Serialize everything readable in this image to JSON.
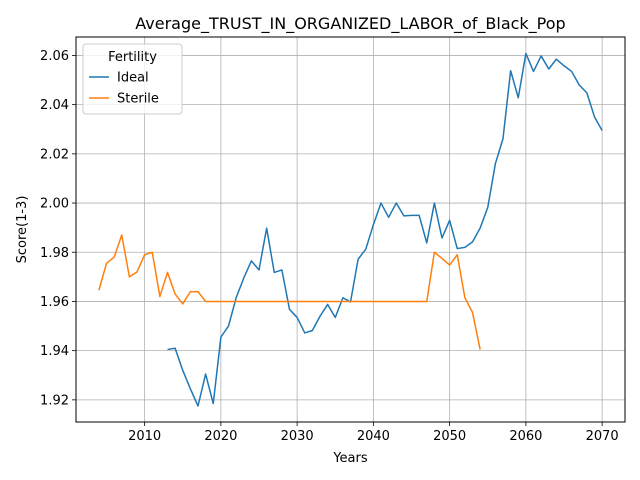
{
  "chart_data": {
    "type": "line",
    "title": "Average_TRUST_IN_ORGANIZED_LABOR_of_Black_Pop",
    "xlabel": "Years",
    "ylabel": "Score(1-3)",
    "xlim": [
      2001,
      2073
    ],
    "ylim": [
      1.911,
      2.0675
    ],
    "xticks": [
      2010,
      2020,
      2030,
      2040,
      2050,
      2060,
      2070
    ],
    "yticks": [
      1.92,
      1.94,
      1.96,
      1.98,
      2.0,
      2.02,
      2.04,
      2.06
    ],
    "ytick_labels": [
      "1.92",
      "1.94",
      "1.96",
      "1.98",
      "2.00",
      "2.02",
      "2.04",
      "2.06"
    ],
    "grid": true,
    "legend": {
      "title": "Fertility",
      "placement": "upper-left"
    },
    "series": [
      {
        "name": "Ideal",
        "color": "#1f77b4",
        "x": [
          2013,
          2014,
          2015,
          2016,
          2017,
          2018,
          2019,
          2020,
          2021,
          2022,
          2023,
          2024,
          2025,
          2026,
          2027,
          2028,
          2029,
          2030,
          2031,
          2032,
          2033,
          2034,
          2035,
          2036,
          2037,
          2038,
          2039,
          2040,
          2041,
          2042,
          2043,
          2044,
          2045,
          2046,
          2047,
          2048,
          2049,
          2050,
          2051,
          2052,
          2053,
          2054,
          2055,
          2056,
          2057,
          2058,
          2059,
          2060,
          2061,
          2062,
          2063,
          2064,
          2065,
          2066,
          2067,
          2068,
          2069,
          2070
        ],
        "values": [
          1.9405,
          1.941,
          1.932,
          1.9245,
          1.9175,
          1.9305,
          1.9185,
          1.9455,
          1.95,
          1.9615,
          1.9695,
          1.9765,
          1.9728,
          1.9898,
          1.9718,
          1.9728,
          1.9568,
          1.9535,
          1.9472,
          1.9482,
          1.954,
          1.9588,
          1.9535,
          1.9615,
          1.9598,
          1.9772,
          1.9812,
          1.9912,
          2.0,
          1.9942,
          2.0,
          1.9948,
          1.995,
          1.995,
          1.9838,
          2.0,
          1.9858,
          1.993,
          1.9815,
          1.982,
          1.9842,
          1.9898,
          1.9982,
          2.016,
          2.0262,
          2.0538,
          2.0428,
          2.0608,
          2.0535,
          2.0598,
          2.0545,
          2.0585,
          2.0558,
          2.0535,
          2.048,
          2.0448,
          2.035,
          2.0295
        ]
      },
      {
        "name": "Sterile",
        "color": "#ff7f0e",
        "x": [
          2004,
          2005,
          2006,
          2007,
          2008,
          2009,
          2010,
          2011,
          2012,
          2013,
          2014,
          2015,
          2016,
          2017,
          2018,
          2019,
          2020,
          2021,
          2022,
          2023,
          2024,
          2025,
          2026,
          2027,
          2028,
          2029,
          2030,
          2031,
          2032,
          2033,
          2034,
          2035,
          2036,
          2037,
          2038,
          2039,
          2040,
          2041,
          2042,
          2043,
          2044,
          2045,
          2046,
          2047,
          2048,
          2049,
          2050,
          2051,
          2052,
          2053,
          2054
        ],
        "values": [
          1.9645,
          1.9755,
          1.978,
          1.987,
          1.97,
          1.972,
          1.979,
          1.98,
          1.962,
          1.9718,
          1.963,
          1.959,
          1.964,
          1.964,
          1.96,
          1.96,
          1.96,
          1.96,
          1.96,
          1.96,
          1.96,
          1.96,
          1.96,
          1.96,
          1.96,
          1.96,
          1.96,
          1.96,
          1.96,
          1.96,
          1.96,
          1.96,
          1.96,
          1.96,
          1.96,
          1.96,
          1.96,
          1.96,
          1.96,
          1.96,
          1.96,
          1.96,
          1.96,
          1.96,
          1.98,
          1.9775,
          1.9748,
          1.979,
          1.9615,
          1.9555,
          1.9405
        ]
      }
    ]
  }
}
